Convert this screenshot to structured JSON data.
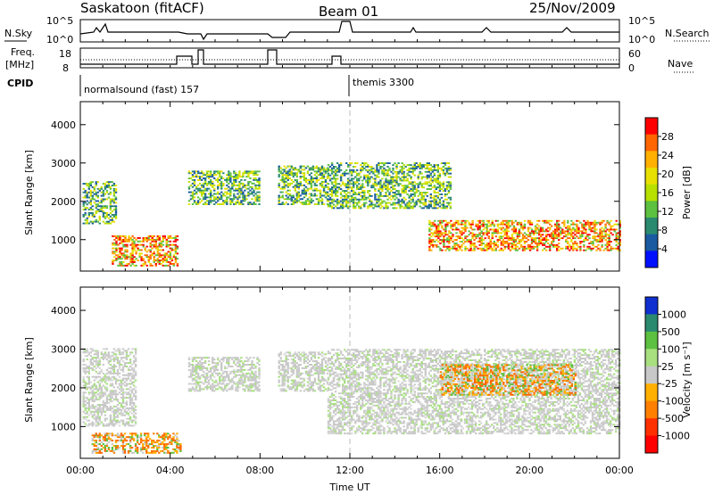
{
  "header": {
    "station": "Saskatoon (fitACF)",
    "beam": "Beam 01",
    "date": "25/Nov/2009"
  },
  "strip": {
    "nsky_label": "N.Sky",
    "nsearch_label": "N.Search",
    "nsky_ticks": [
      "10^5",
      "10^0"
    ],
    "nsearch_ticks": [
      "10^5",
      "10^0"
    ],
    "freq_label_1": "Freq.",
    "freq_label_2": "[MHz]",
    "freq_ticks": [
      "18",
      "8"
    ],
    "nave_label": "Nave",
    "nave_ticks": [
      "60",
      "0"
    ],
    "cpid_label": "CPID",
    "cpid_entries": [
      {
        "name": "normalsound (fast) 157",
        "start_hour": 0
      },
      {
        "name": "themis 3300",
        "start_hour": 12
      }
    ]
  },
  "chart_data": [
    {
      "type": "heatmap",
      "title": "",
      "ylabel": "Slant Range [km]",
      "xlabel": "",
      "ylim": [
        180,
        4600
      ],
      "xlim_hours": [
        0,
        24
      ],
      "yticks": [
        1000,
        2000,
        3000,
        4000
      ],
      "colorbar": {
        "label": "Power [dB]",
        "ticks": [
          "28",
          "24",
          "20",
          "16",
          "12",
          "8",
          "4"
        ],
        "colors": [
          "#ff0000",
          "#ff6600",
          "#ffb000",
          "#e8e000",
          "#b8e000",
          "#5cc040",
          "#2a8a70",
          "#1a5aa0",
          "#0010ff"
        ]
      },
      "echo_regions": [
        {
          "t": [
            0.1,
            1.6
          ],
          "range": [
            1400,
            2500
          ],
          "level": "mid"
        },
        {
          "t": [
            1.4,
            4.3
          ],
          "range": [
            300,
            1100
          ],
          "level": "high"
        },
        {
          "t": [
            4.8,
            8.0
          ],
          "range": [
            1900,
            2800
          ],
          "level": "mid"
        },
        {
          "t": [
            8.8,
            11.0
          ],
          "range": [
            1900,
            2900
          ],
          "level": "mid"
        },
        {
          "t": [
            11.0,
            16.5
          ],
          "range": [
            1800,
            3000
          ],
          "level": "mid"
        },
        {
          "t": [
            15.5,
            24.0
          ],
          "range": [
            700,
            1500
          ],
          "level": "high"
        }
      ]
    },
    {
      "type": "heatmap",
      "title": "",
      "ylabel": "Slant Range [km]",
      "xlabel": "Time UT",
      "ylim": [
        180,
        4600
      ],
      "xlim_hours": [
        0,
        24
      ],
      "xticks": [
        "00:00",
        "04:00",
        "08:00",
        "12:00",
        "16:00",
        "20:00",
        "00:00"
      ],
      "yticks": [
        1000,
        2000,
        3000,
        4000
      ],
      "colorbar": {
        "label": "Velocity [m s⁻¹]",
        "ticks": [
          "1000",
          "500",
          "100",
          "25",
          "-25",
          "-100",
          "-500",
          "-1000"
        ],
        "colors": [
          "#1030d0",
          "#2a8a70",
          "#5cc040",
          "#a8e080",
          "#c8c8c8",
          "#ffb000",
          "#ff8000",
          "#ff3000",
          "#ff0000"
        ]
      },
      "echo_regions": [
        {
          "t": [
            0.1,
            2.5
          ],
          "range": [
            1000,
            3000
          ],
          "level": "neutral"
        },
        {
          "t": [
            0.5,
            4.5
          ],
          "range": [
            300,
            800
          ],
          "level": "away"
        },
        {
          "t": [
            4.8,
            8.0
          ],
          "range": [
            1900,
            2800
          ],
          "level": "neutral"
        },
        {
          "t": [
            8.8,
            11.0
          ],
          "range": [
            1900,
            2900
          ],
          "level": "neutral"
        },
        {
          "t": [
            11.0,
            24.0
          ],
          "range": [
            800,
            3000
          ],
          "level": "neutral"
        },
        {
          "t": [
            16.0,
            22.0
          ],
          "range": [
            1800,
            2600
          ],
          "level": "away"
        }
      ]
    }
  ]
}
